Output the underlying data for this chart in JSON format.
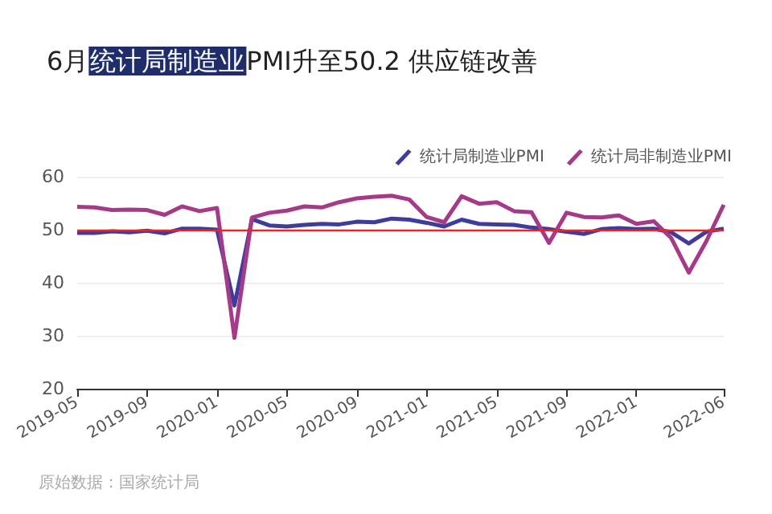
{
  "chart_data": {
    "type": "line",
    "title": "6月统计局制造业PMI升至50.2 供应链改善",
    "categories": [
      "2019-05",
      null,
      null,
      null,
      "2019-09",
      null,
      null,
      null,
      "2020-01",
      null,
      null,
      null,
      "2020-05",
      null,
      null,
      null,
      "2020-09",
      null,
      null,
      null,
      "2021-01",
      null,
      null,
      null,
      "2021-05",
      null,
      null,
      null,
      "2021-09",
      null,
      null,
      null,
      "2022-01",
      null,
      null,
      null,
      null,
      "2022-06"
    ],
    "series": [
      {
        "name": "统计局制造业PMI",
        "color": "#3f3c9c",
        "values": [
          49.4,
          49.4,
          49.7,
          49.5,
          49.8,
          49.3,
          50.2,
          50.2,
          50.0,
          35.7,
          52.0,
          50.8,
          50.6,
          50.9,
          51.1,
          51.0,
          51.5,
          51.4,
          52.1,
          51.9,
          51.3,
          50.6,
          51.9,
          51.1,
          51.0,
          50.9,
          50.4,
          50.1,
          49.6,
          49.2,
          50.1,
          50.3,
          50.1,
          50.2,
          49.5,
          47.4,
          49.6,
          50.2
        ]
      },
      {
        "name": "统计局非制造业PMI",
        "color": "#a63a88",
        "values": [
          54.3,
          54.2,
          53.7,
          53.8,
          53.7,
          52.8,
          54.4,
          53.5,
          54.1,
          29.6,
          52.3,
          53.2,
          53.6,
          54.4,
          54.2,
          55.2,
          55.9,
          56.2,
          56.4,
          55.7,
          52.4,
          51.4,
          56.3,
          54.9,
          55.2,
          53.5,
          53.3,
          47.5,
          53.2,
          52.4,
          52.3,
          52.7,
          51.1,
          51.6,
          48.4,
          41.9,
          47.8,
          54.7
        ]
      }
    ],
    "ylim": [
      20,
      60
    ],
    "yticks": [
      20,
      30,
      40,
      50,
      60
    ],
    "grid": "y",
    "legend": "top right",
    "marker": "none",
    "line_style": "solid",
    "ref_lines": [
      {
        "axis": "y",
        "value": 50,
        "color": "#e8262a"
      }
    ],
    "annotations": [
      "原始数据：国家统计局"
    ]
  }
}
